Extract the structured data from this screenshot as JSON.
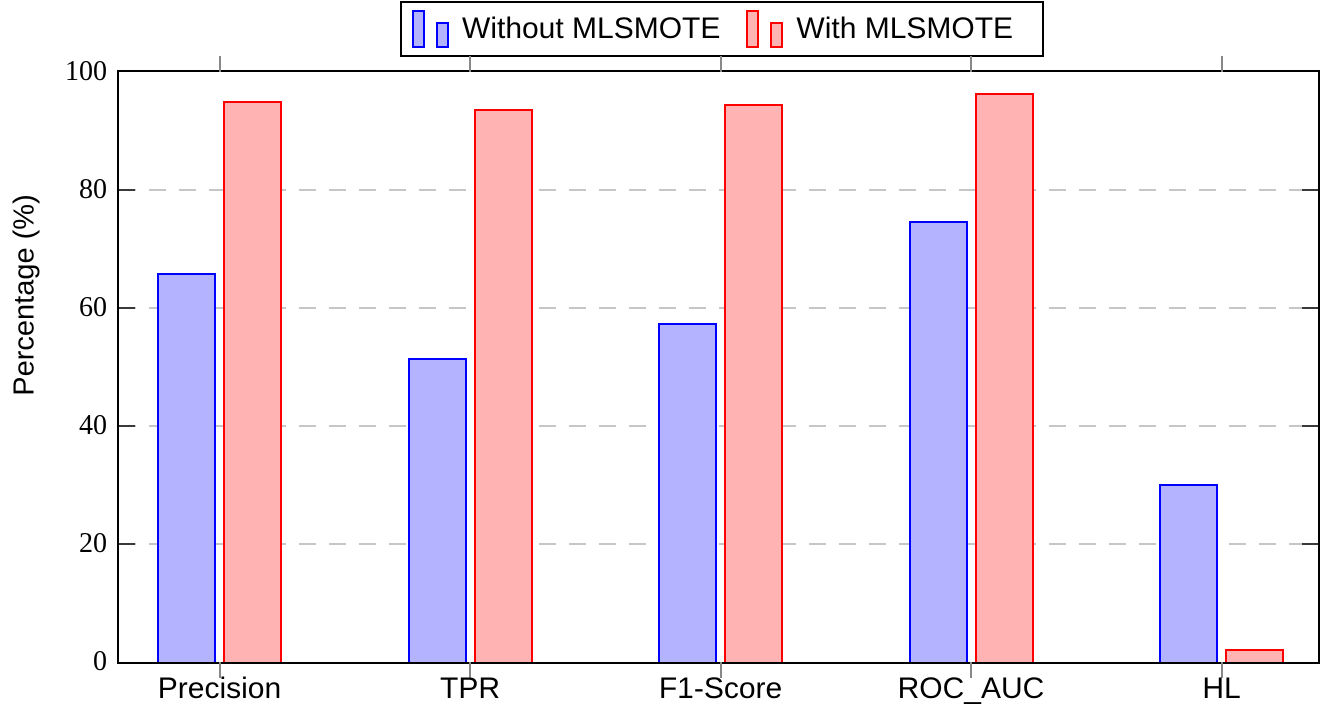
{
  "legend": {
    "items": [
      {
        "label": "Without MLSMOTE",
        "border_color": "#0000ff",
        "fill_color": "#b3b3ff"
      },
      {
        "label": "With MLSMOTE",
        "border_color": "#ff0000",
        "fill_color": "#ffb3b3"
      }
    ]
  },
  "axes": {
    "ylabel": "Percentage (%)",
    "ytick_labels": [
      "0",
      "20",
      "40",
      "60",
      "80",
      "100"
    ]
  },
  "chart_data": {
    "type": "bar",
    "title": "",
    "categories": [
      "Precision",
      "TPR",
      "F1-Score",
      "ROC_AUC",
      "HL"
    ],
    "series": [
      {
        "name": "Without MLSMOTE",
        "values": [
          65.9,
          51.5,
          57.5,
          74.7,
          30.2
        ],
        "border_color": "#0000ff",
        "fill_color": "#b3b3ff"
      },
      {
        "name": "With MLSMOTE",
        "values": [
          95.1,
          93.7,
          94.6,
          96.4,
          2.2
        ],
        "border_color": "#ff0000",
        "fill_color": "#ffb3b3"
      }
    ],
    "xlabel": "",
    "ylabel": "Percentage (%)",
    "ylim": [
      0,
      100
    ],
    "yticks": [
      0,
      20,
      40,
      60,
      80,
      100
    ],
    "grid": "horizontal dashed at 20,40,60,80",
    "grid_color": "#c6c6c6",
    "axis_color": "#000000",
    "category_tick_color": "#888888",
    "legend_position": "top-center"
  }
}
